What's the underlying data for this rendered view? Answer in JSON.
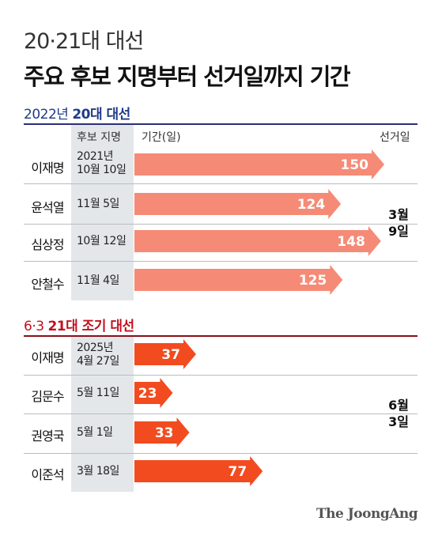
{
  "header": {
    "subtitle": "20·21대 대선",
    "title": "주요 후보 지명부터 선거일까지 기간"
  },
  "columns": {
    "nomination": "후보 지명",
    "period": "기간(일)",
    "election_day": "선거일"
  },
  "chart_data": [
    {
      "type": "bar",
      "title_prefix": "2022년",
      "title_bold": "20대 대선",
      "categories": [
        "이재명",
        "윤석열",
        "심상정",
        "안철수"
      ],
      "nomination_dates": [
        [
          "2021년",
          "10월 10일"
        ],
        [
          "11월 5일"
        ],
        [
          "10월 12일"
        ],
        [
          "11월 4일"
        ]
      ],
      "values": [
        150,
        124,
        148,
        125
      ],
      "election_day": [
        "3월",
        "9일"
      ],
      "color": "#f58b76",
      "xlim": [
        0,
        150
      ]
    },
    {
      "type": "bar",
      "title_prefix": "6·3",
      "title_bold": "21대 조기 대선",
      "categories": [
        "이재명",
        "김문수",
        "권영국",
        "이준석"
      ],
      "nomination_dates": [
        [
          "2025년",
          "4월 27일"
        ],
        [
          "5월 11일"
        ],
        [
          "5월 1일"
        ],
        [
          "3월 18일"
        ]
      ],
      "values": [
        37,
        23,
        33,
        77
      ],
      "election_day": [
        "6월",
        "3일"
      ],
      "color": "#f24b1f",
      "xlim": [
        0,
        150
      ]
    }
  ],
  "source": "The JoongAng"
}
